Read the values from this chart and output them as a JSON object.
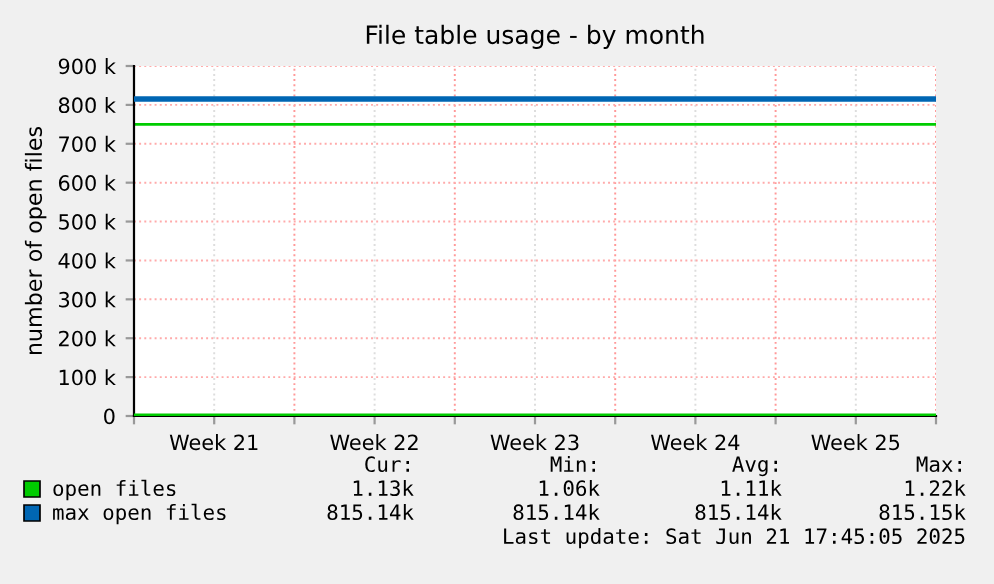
{
  "chart_data": {
    "type": "line",
    "title": "File table usage - by month",
    "ylabel": "number of open files",
    "categories": [
      null,
      "Week 21",
      null,
      "Week 22",
      null,
      "Week 23",
      null,
      "Week 24",
      null,
      "Week 25",
      null
    ],
    "series": [
      {
        "name": "open files",
        "color": "#00cc00",
        "values": [
          1000,
          1000,
          1000,
          1000,
          1000,
          1000,
          1000,
          1000,
          1000,
          1000,
          1000
        ]
      },
      {
        "name": "max open files",
        "color": "#0066b3",
        "values": [
          815000,
          815000,
          815000,
          815000,
          815000,
          815000,
          815000,
          815000,
          815000,
          815000,
          815000
        ]
      }
    ],
    "ylim": [
      0,
      900000
    ],
    "yticks": [
      0,
      {
        "value": 100000,
        "label": "100 k"
      },
      {
        "value": 200000,
        "label": "200 k"
      },
      {
        "value": 300000,
        "label": "300 k"
      },
      {
        "value": 400000,
        "label": "400 k"
      },
      {
        "value": 500000,
        "label": "500 k"
      },
      {
        "value": 600000,
        "label": "600 k"
      },
      {
        "value": 700000,
        "label": "700 k"
      },
      {
        "value": 800000,
        "label": "800 k"
      },
      {
        "value": 900000,
        "label": "900 k"
      }
    ],
    "ref_lines": [
      {
        "axis": "y",
        "value": 750000,
        "color": "#00cc00"
      }
    ],
    "grid": true,
    "legend": "bottom",
    "marker": "none",
    "line_style": "solid",
    "annotations": [
      "Cur:",
      "Min:",
      "Avg:",
      "Max:",
      "1.13k",
      "1.06k",
      "1.11k",
      "1.22k",
      "815.14k",
      "815.14k",
      "815.14k",
      "815.15k",
      "Last update: Sat Jun 21 17:45:05 2025"
    ]
  }
}
